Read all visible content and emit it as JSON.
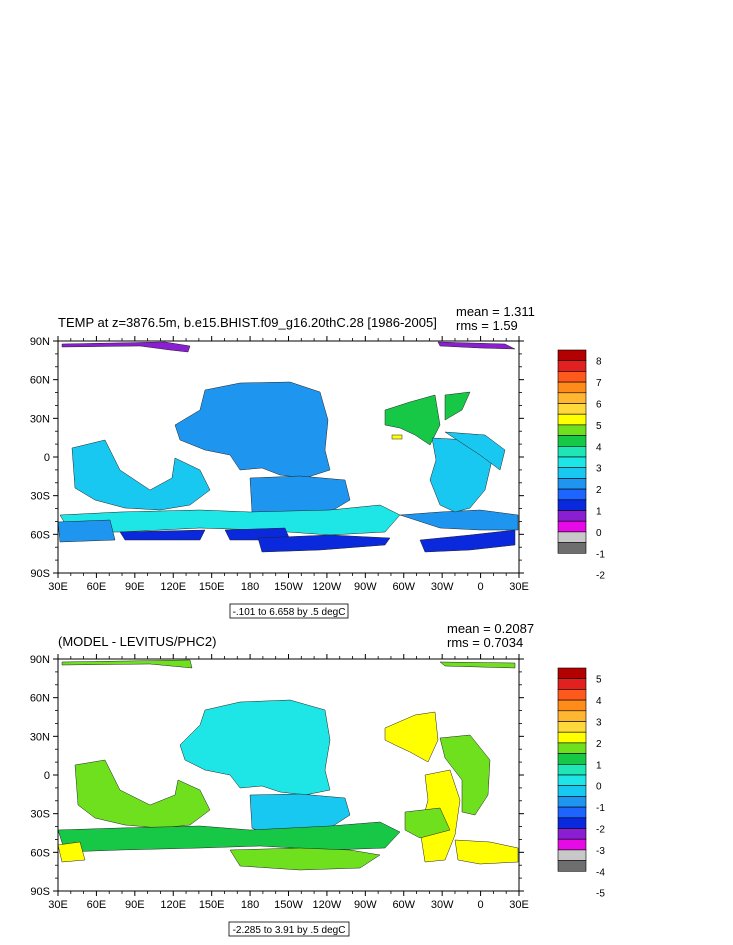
{
  "chart_data": [
    {
      "type": "heatmap",
      "title": "TEMP at z=3876.5m, b.e15.BHIST.f09_g16.20thC.28 [1986-2005]",
      "stats": {
        "mean": "mean = 1.311",
        "rms": "rms = 1.59"
      },
      "contour_info": "-.101 to 6.658 by .5 degC",
      "x_ticks": [
        "30E",
        "60E",
        "90E",
        "120E",
        "150E",
        "180",
        "150W",
        "120W",
        "90W",
        "60W",
        "30W",
        "0",
        "30E"
      ],
      "y_ticks": [
        "90N",
        "60N",
        "30N",
        "0",
        "30S",
        "60S",
        "90S"
      ],
      "colorbar": {
        "labels": [
          "8",
          "7",
          "6",
          "5",
          "4",
          "3",
          "2",
          "1",
          "0",
          "-1",
          "-2"
        ],
        "colors": [
          "#b30000",
          "#e32020",
          "#ff5a1e",
          "#ff8c1a",
          "#ffb732",
          "#ffd83c",
          "#ffff00",
          "#6fe01e",
          "#17c846",
          "#1fe6b4",
          "#1ee6e6",
          "#19c8f0",
          "#1e96f0",
          "#1e64ff",
          "#0a28dc",
          "#8a1ed2",
          "#e60ae6",
          "#c8c8c8",
          "#6e6e6e"
        ]
      },
      "region_colors": {
        "arctic": "#8a1ed2",
        "main": "#1e96f0",
        "light": "#19c8f0",
        "cyan": "#1ee6e6",
        "deep": "#0a28dc",
        "green": "#17c846",
        "yellow": "#ffff00"
      }
    },
    {
      "type": "heatmap",
      "title": "(MODEL - LEVITUS/PHC2)",
      "stats": {
        "mean": "mean = 0.2087",
        "rms": "rms = 0.7034"
      },
      "contour_info": "-2.285 to 3.91 by .5 degC",
      "x_ticks": [
        "30E",
        "60E",
        "90E",
        "120E",
        "150E",
        "180",
        "150W",
        "120W",
        "90W",
        "60W",
        "30W",
        "0",
        "30E"
      ],
      "y_ticks": [
        "90N",
        "60N",
        "30N",
        "0",
        "30S",
        "60S",
        "90S"
      ],
      "colorbar": {
        "labels": [
          "5",
          "4",
          "3",
          "2",
          "1",
          "0",
          "-1",
          "-2",
          "-3",
          "-4",
          "-5"
        ],
        "colors": [
          "#b30000",
          "#e32020",
          "#ff5a1e",
          "#ff8c1a",
          "#ffb732",
          "#ffd83c",
          "#ffff00",
          "#6fe01e",
          "#17c846",
          "#1fe6b4",
          "#1ee6e6",
          "#19c8f0",
          "#1e96f0",
          "#1e64ff",
          "#0a28dc",
          "#8a1ed2",
          "#e60ae6",
          "#c8c8c8",
          "#6e6e6e"
        ]
      },
      "region_colors": {
        "arctic": "#6fe01e",
        "main": "#1ee6e6",
        "light": "#1ee6e6",
        "cyan": "#19c8f0",
        "deep": "#17c846",
        "green": "#6fe01e",
        "yellow": "#ffff00"
      }
    }
  ]
}
